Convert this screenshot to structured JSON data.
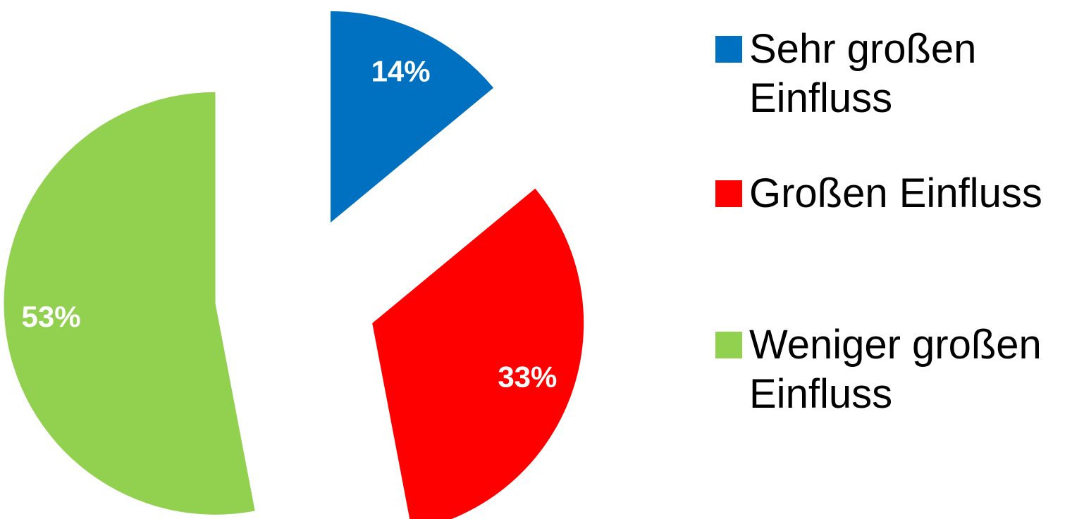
{
  "chart_data": {
    "type": "pie",
    "categories": [
      "Sehr großen Einfluss",
      "Großen Einfluss",
      "Weniger großen Einfluss"
    ],
    "values": [
      14,
      33,
      53
    ],
    "value_labels": [
      "14%",
      "33%",
      "53%"
    ],
    "colors": [
      "#0070c0",
      "#ff0000",
      "#92d050"
    ],
    "legend": "right"
  }
}
